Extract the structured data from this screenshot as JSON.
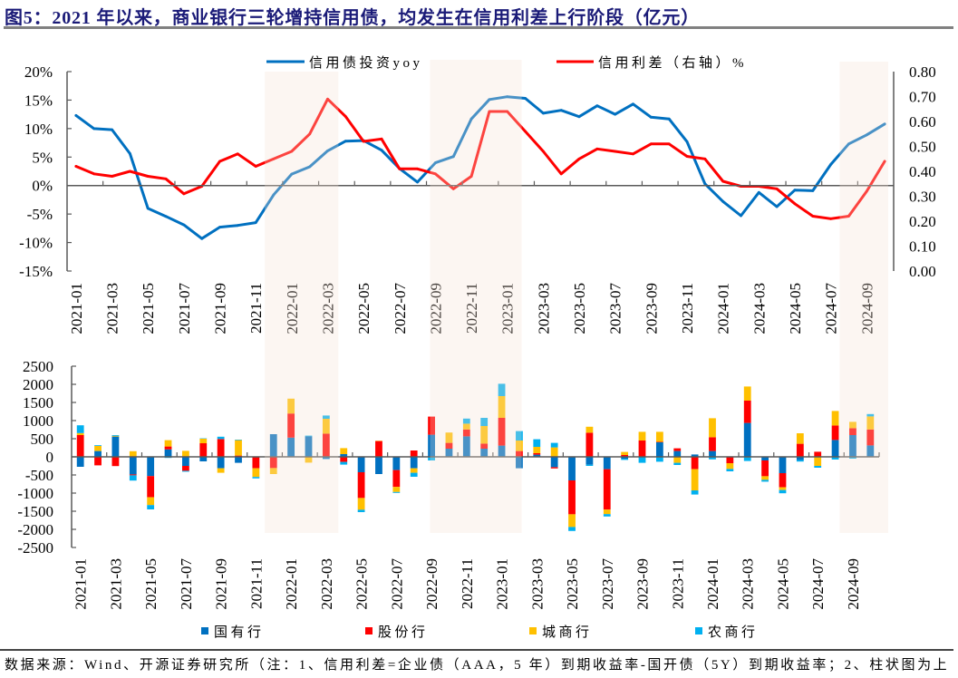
{
  "title": "图5：2021 年以来，商业银行三轮增持信用债，均发生在信用利差上行阶段（亿元）",
  "footer": {
    "source_note": "数据来源：Wind、开源证券研究所（注：1、信用利差=企业债（AAA，5 年）到期收益率-国开债（5Y）到期收益率；2、柱状图为上"
  },
  "chart_data": [
    {
      "type": "line",
      "title": "",
      "xlabel": "",
      "categories": [
        "2021-01",
        "2021-02",
        "2021-03",
        "2021-04",
        "2021-05",
        "2021-06",
        "2021-07",
        "2021-08",
        "2021-09",
        "2021-10",
        "2021-11",
        "2021-12",
        "2022-01",
        "2022-02",
        "2022-03",
        "2022-04",
        "2022-05",
        "2022-06",
        "2022-07",
        "2022-08",
        "2022-09",
        "2022-10",
        "2022-11",
        "2022-12",
        "2023-01",
        "2023-02",
        "2023-03",
        "2023-04",
        "2023-05",
        "2023-06",
        "2023-07",
        "2023-08",
        "2023-09",
        "2023-10",
        "2023-11",
        "2023-12",
        "2024-01",
        "2024-02",
        "2024-03",
        "2024-04",
        "2024-05",
        "2024-06",
        "2024-07",
        "2024-08",
        "2024-09",
        "2024-10"
      ],
      "x_tick_labels_every": 2,
      "series": [
        {
          "name": "信用债投资yoy",
          "axis": "left",
          "unit": "%",
          "color": "#0070C0",
          "values": [
            12.3,
            10.0,
            9.8,
            5.6,
            -4.0,
            -5.4,
            -6.9,
            -9.3,
            -7.3,
            -7.0,
            -6.5,
            -1.6,
            2.0,
            3.3,
            6.1,
            7.8,
            7.9,
            6.2,
            3.0,
            0.6,
            4.0,
            5.1,
            11.7,
            15.1,
            15.6,
            15.3,
            12.7,
            13.2,
            12.1,
            14.0,
            12.5,
            14.3,
            12.0,
            11.7,
            7.7,
            0.3,
            -2.8,
            -5.3,
            -1.2,
            -3.7,
            -0.8,
            -0.9,
            3.7,
            7.3,
            8.9,
            10.8
          ]
        },
        {
          "name": "信用利差（右轴）%",
          "axis": "right",
          "unit": "%",
          "color": "#FF0000",
          "values": [
            0.42,
            0.39,
            0.38,
            0.4,
            0.38,
            0.37,
            0.31,
            0.34,
            0.44,
            0.47,
            0.42,
            0.45,
            0.48,
            0.55,
            0.69,
            0.62,
            0.52,
            0.53,
            0.41,
            0.41,
            0.39,
            0.33,
            0.38,
            0.64,
            0.64,
            0.56,
            0.48,
            0.39,
            0.45,
            0.49,
            0.48,
            0.47,
            0.51,
            0.51,
            0.46,
            0.45,
            0.36,
            0.34,
            0.34,
            0.33,
            0.27,
            0.22,
            0.21,
            0.22,
            0.32,
            0.44
          ]
        }
      ],
      "y_left": {
        "label": "",
        "range": [
          -15,
          20
        ],
        "ticks": [
          20,
          15,
          10,
          5,
          0,
          -5,
          -10,
          -15
        ],
        "tick_labels": [
          "20%",
          "15%",
          "10%",
          "5%",
          "0%",
          "-5%",
          "-10%",
          "-15%"
        ]
      },
      "y_right": {
        "label": "",
        "range": [
          0,
          0.8
        ],
        "ticks": [
          0.8,
          0.7,
          0.6,
          0.5,
          0.4,
          0.3,
          0.2,
          0.1,
          0.0
        ],
        "tick_labels": [
          "0.80",
          "0.70",
          "0.60",
          "0.50",
          "0.40",
          "0.30",
          "0.20",
          "0.10",
          "0.00"
        ]
      },
      "grid": false,
      "legend_position": "top",
      "highlight_periods": [
        {
          "start": "2021-12",
          "end": "2022-03"
        },
        {
          "start": "2022-09",
          "end": "2023-01"
        },
        {
          "start": "2024-08",
          "end": "2024-10"
        }
      ],
      "highlight_color": "#FCF6F2"
    },
    {
      "type": "bar",
      "stacked": true,
      "title": "",
      "unit": "亿元",
      "xlabel": "",
      "categories": [
        "2021-01",
        "2021-02",
        "2021-03",
        "2021-04",
        "2021-05",
        "2021-06",
        "2021-07",
        "2021-08",
        "2021-09",
        "2021-10",
        "2021-11",
        "2021-12",
        "2022-01",
        "2022-02",
        "2022-03",
        "2022-04",
        "2022-05",
        "2022-06",
        "2022-07",
        "2022-08",
        "2022-09",
        "2022-10",
        "2022-11",
        "2022-12",
        "2023-01",
        "2023-02",
        "2023-03",
        "2023-04",
        "2023-05",
        "2023-06",
        "2023-07",
        "2023-08",
        "2023-09",
        "2023-10",
        "2023-11",
        "2023-12",
        "2024-01",
        "2024-02",
        "2024-03",
        "2024-04",
        "2024-05",
        "2024-06",
        "2024-07",
        "2024-08",
        "2024-09",
        "2024-10"
      ],
      "x_tick_labels_every": 2,
      "series": [
        {
          "name": "国有行",
          "color": "#0070C0",
          "values": [
            -275,
            160,
            560,
            -485,
            -530,
            205,
            -250,
            -125,
            -315,
            -165,
            0,
            625,
            530,
            565,
            -60,
            75,
            -425,
            -475,
            -365,
            -315,
            610,
            225,
            565,
            225,
            310,
            -315,
            60,
            -285,
            -650,
            -215,
            -340,
            -50,
            0,
            400,
            160,
            65,
            160,
            0,
            935,
            -100,
            -450,
            -90,
            0,
            465,
            600,
            315
          ]
        },
        {
          "name": "股份行",
          "color": "#FF0000",
          "values": [
            600,
            -235,
            -255,
            -25,
            -585,
            80,
            -135,
            375,
            490,
            35,
            -315,
            -310,
            665,
            0,
            640,
            -140,
            -710,
            435,
            -465,
            175,
            500,
            160,
            190,
            140,
            765,
            160,
            40,
            -35,
            -935,
            665,
            -1115,
            50,
            450,
            15,
            75,
            -340,
            380,
            -175,
            615,
            -435,
            -390,
            360,
            140,
            400,
            190,
            440
          ]
        },
        {
          "name": "城商行",
          "color": "#FFC000",
          "values": [
            55,
            140,
            20,
            155,
            -215,
            175,
            165,
            125,
            -125,
            425,
            -240,
            -165,
            410,
            -160,
            410,
            165,
            -325,
            10,
            -140,
            -125,
            0,
            285,
            160,
            485,
            600,
            290,
            175,
            260,
            -350,
            165,
            -125,
            85,
            240,
            275,
            -165,
            -585,
            525,
            -160,
            390,
            -100,
            -75,
            290,
            -250,
            400,
            175,
            360
          ]
        },
        {
          "name": "农商行",
          "color": "#00B0F0",
          "values": [
            215,
            20,
            20,
            -145,
            -120,
            -30,
            -25,
            10,
            65,
            15,
            -40,
            0,
            0,
            20,
            90,
            -75,
            -65,
            0,
            -25,
            -110,
            -100,
            0,
            140,
            225,
            340,
            260,
            210,
            125,
            -110,
            -35,
            -65,
            -35,
            -165,
            -135,
            -60,
            -115,
            -70,
            -65,
            -115,
            -50,
            -90,
            -40,
            -50,
            -75,
            -50,
            65
          ]
        }
      ],
      "y": {
        "label": "",
        "range": [
          -2500,
          2500
        ],
        "ticks": [
          2500,
          2000,
          1500,
          1000,
          500,
          0,
          -500,
          -1000,
          -1500,
          -2000,
          -2500
        ],
        "tick_labels": [
          "2500",
          "2000",
          "1500",
          "1000",
          "500",
          "0",
          "-500",
          "-1000",
          "-1500",
          "-2000",
          "-2500"
        ]
      },
      "grid": false,
      "legend_position": "bottom",
      "highlight_periods": [
        {
          "start": "2021-12",
          "end": "2022-03"
        },
        {
          "start": "2022-09",
          "end": "2023-01"
        },
        {
          "start": "2024-08",
          "end": "2024-10"
        }
      ]
    }
  ]
}
